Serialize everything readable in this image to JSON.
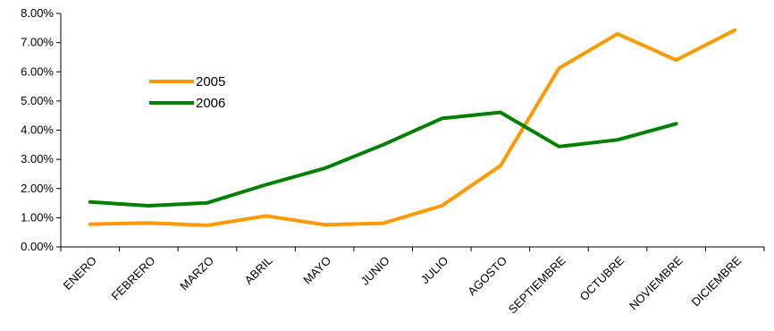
{
  "chart_data": {
    "type": "line",
    "categories": [
      "ENERO",
      "FEBRERO",
      "MARZO",
      "ABRIL",
      "MAYO",
      "JUNIO",
      "JULIO",
      "AGOSTO",
      "SEPTIEMBRE",
      "OCTUBRE",
      "NOVIEMBRE",
      "DICIEMBRE"
    ],
    "series": [
      {
        "name": "2005",
        "color": "#FF9900",
        "values": [
          0.78,
          0.82,
          0.74,
          1.06,
          0.76,
          0.81,
          1.41,
          2.78,
          6.12,
          7.3,
          6.4,
          7.43
        ]
      },
      {
        "name": "2006",
        "color": "#008000",
        "values": [
          1.54,
          1.41,
          1.51,
          2.13,
          2.69,
          3.5,
          4.4,
          4.61,
          3.44,
          3.67,
          4.22,
          null
        ]
      }
    ],
    "y_ticks": [
      "0.00%",
      "1.00%",
      "2.00%",
      "3.00%",
      "4.00%",
      "5.00%",
      "6.00%",
      "7.00%",
      "8.00%"
    ],
    "ylim": [
      0,
      8
    ],
    "y_unit": "%",
    "legend_position": "top-left inside plot",
    "grid": false,
    "title": "",
    "xlabel": "",
    "ylabel": ""
  }
}
